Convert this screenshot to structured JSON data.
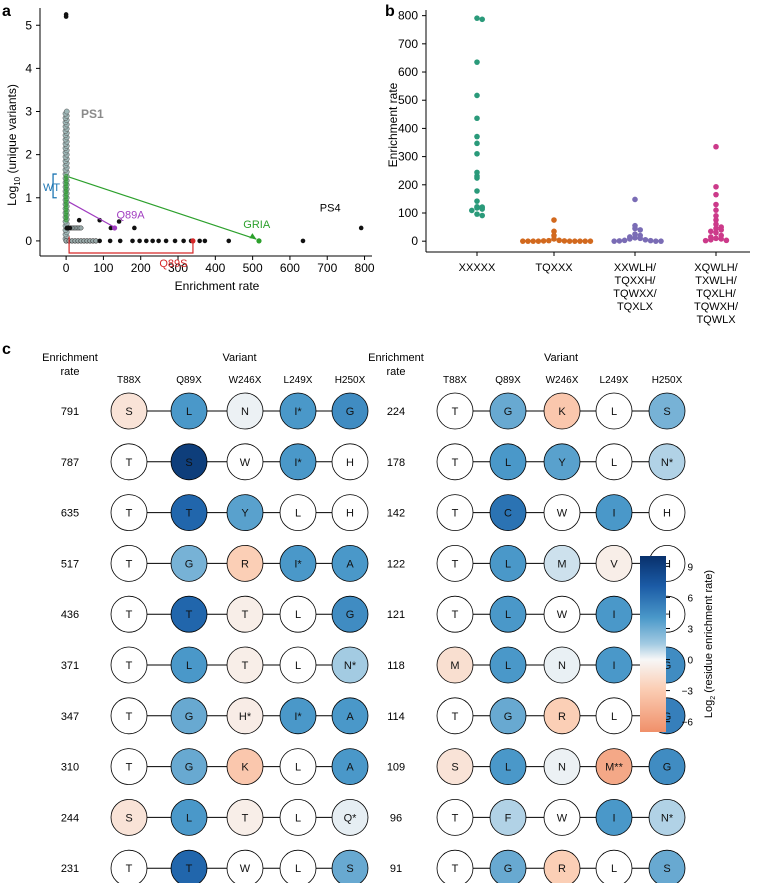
{
  "panels": {
    "a": {
      "letter": "a"
    },
    "b": {
      "letter": "b"
    },
    "c": {
      "letter": "c"
    }
  },
  "chart_data": [
    {
      "id": "panel-a",
      "type": "scatter",
      "xlabel": "Enrichment rate",
      "ylabel_main": "Log",
      "ylabel_sub": "10",
      "ylabel_rest": " (unique variants)",
      "xlim": [
        -70,
        820
      ],
      "ylim": [
        -0.35,
        5.4
      ],
      "xticks": [
        0,
        100,
        200,
        300,
        400,
        500,
        600,
        700,
        800
      ],
      "yticks": [
        0,
        1,
        2,
        3,
        4,
        5
      ],
      "black_points": [
        [
          0,
          5.25
        ],
        [
          0,
          5.2
        ],
        [
          35,
          0.48
        ],
        [
          90,
          0.48
        ],
        [
          120,
          0.3
        ],
        [
          142,
          0.45
        ],
        [
          183,
          0.3
        ],
        [
          10,
          0.3
        ],
        [
          2,
          0.3
        ],
        [
          5,
          0.3
        ],
        [
          90,
          0
        ],
        [
          118,
          0
        ],
        [
          145,
          0
        ],
        [
          178,
          0
        ],
        [
          197,
          0
        ],
        [
          215,
          0
        ],
        [
          232,
          0
        ],
        [
          248,
          0
        ],
        [
          268,
          0
        ],
        [
          292,
          0
        ],
        [
          315,
          0
        ],
        [
          335,
          0
        ],
        [
          358,
          0
        ],
        [
          372,
          0
        ],
        [
          436,
          0
        ],
        [
          517,
          0
        ],
        [
          635,
          0
        ],
        [
          791,
          0.3
        ]
      ],
      "low_black_x": [
        0,
        8,
        16,
        24,
        32,
        40,
        48,
        56,
        64,
        72,
        80
      ],
      "labels": {
        "ps1": "PS1",
        "ps4": "PS4",
        "wt": "WT",
        "gria": "GRIA",
        "q89a": "Q89A",
        "q89s": "Q89S"
      },
      "colors": {
        "green": "#2ca02c",
        "purple": "#a03cc0",
        "red": "#d62728",
        "blue": "#1f77b4",
        "grey": "#8a8a8a"
      }
    },
    {
      "id": "panel-b",
      "type": "scatter",
      "ylabel": "Enrichment rate",
      "ylim": [
        -10,
        820
      ],
      "yticks": [
        0,
        100,
        200,
        300,
        400,
        500,
        600,
        700,
        800
      ],
      "categories": [
        {
          "label": [
            "XXXXX"
          ],
          "color": "#2a9a7a",
          "values": [
            791,
            787,
            635,
            517,
            436,
            371,
            347,
            310,
            244,
            231,
            224,
            178,
            142,
            122,
            121,
            118,
            114,
            109,
            96,
            91
          ]
        },
        {
          "label": [
            "TQXXX"
          ],
          "color": "#d2691e",
          "values": [
            75,
            35,
            20,
            8,
            3,
            2,
            1,
            1,
            0,
            0,
            0,
            0,
            0,
            0,
            0,
            0,
            0
          ]
        },
        {
          "label": [
            "XXWLH/",
            "TQXXH/",
            "TQWXX/",
            "TQXLX"
          ],
          "color": "#7a6cb5",
          "values": [
            148,
            55,
            45,
            40,
            25,
            20,
            15,
            12,
            10,
            8,
            5,
            3,
            2,
            1,
            0,
            0,
            0
          ]
        },
        {
          "label": [
            "XQWLH/",
            "TXWLH/",
            "TQXLH/",
            "TQWXH/",
            "TQWLX"
          ],
          "color": "#cc3a8a",
          "values": [
            335,
            193,
            165,
            130,
            110,
            90,
            75,
            60,
            50,
            45,
            40,
            35,
            30,
            20,
            15,
            10,
            8,
            5,
            3,
            2
          ]
        }
      ]
    }
  ],
  "table": {
    "header_rate": [
      "Enrichment",
      "rate"
    ],
    "header_variant": "Variant",
    "columns": [
      "T88X",
      "Q89X",
      "W246X",
      "L249X",
      "H250X"
    ],
    "left": [
      {
        "rate": "791",
        "cells": [
          [
            "S",
            -1.5
          ],
          [
            "L",
            6
          ],
          [
            "N",
            0.4
          ],
          [
            "I*",
            6
          ],
          [
            "G",
            6.5
          ]
        ]
      },
      {
        "rate": "787",
        "cells": [
          [
            "T",
            null
          ],
          [
            "S",
            9.5
          ],
          [
            "W",
            null
          ],
          [
            "I*",
            6
          ],
          [
            "H",
            null
          ]
        ]
      },
      {
        "rate": "635",
        "cells": [
          [
            "T",
            null
          ],
          [
            "T",
            8
          ],
          [
            "Y",
            5.5
          ],
          [
            "L",
            null
          ],
          [
            "H",
            null
          ]
        ]
      },
      {
        "rate": "517",
        "cells": [
          [
            "T",
            null
          ],
          [
            "G",
            4.5
          ],
          [
            "R",
            -3
          ],
          [
            "I*",
            6
          ],
          [
            "A",
            6
          ]
        ]
      },
      {
        "rate": "436",
        "cells": [
          [
            "T",
            null
          ],
          [
            "T",
            8
          ],
          [
            "T",
            -0.7
          ],
          [
            "L",
            null
          ],
          [
            "G",
            6.5
          ]
        ]
      },
      {
        "rate": "371",
        "cells": [
          [
            "T",
            null
          ],
          [
            "L",
            6
          ],
          [
            "T",
            -0.7
          ],
          [
            "L",
            null
          ],
          [
            "N*",
            3
          ]
        ]
      },
      {
        "rate": "347",
        "cells": [
          [
            "T",
            null
          ],
          [
            "G",
            5
          ],
          [
            "H*",
            -0.8
          ],
          [
            "I*",
            6
          ],
          [
            "A",
            6
          ]
        ]
      },
      {
        "rate": "310",
        "cells": [
          [
            "T",
            null
          ],
          [
            "G",
            5
          ],
          [
            "K",
            -3.5
          ],
          [
            "L",
            null
          ],
          [
            "A",
            6
          ]
        ]
      },
      {
        "rate": "244",
        "cells": [
          [
            "S",
            -1.5
          ],
          [
            "L",
            6
          ],
          [
            "T",
            -0.7
          ],
          [
            "L",
            null
          ],
          [
            "Q*",
            0.6
          ]
        ]
      },
      {
        "rate": "231",
        "cells": [
          [
            "T",
            null
          ],
          [
            "T",
            8
          ],
          [
            "W",
            null
          ],
          [
            "L",
            null
          ],
          [
            "S",
            5
          ]
        ]
      }
    ],
    "right": [
      {
        "rate": "224",
        "cells": [
          [
            "T",
            null
          ],
          [
            "G",
            5
          ],
          [
            "K",
            -3.5
          ],
          [
            "L",
            null
          ],
          [
            "S",
            4.5
          ]
        ]
      },
      {
        "rate": "178",
        "cells": [
          [
            "T",
            null
          ],
          [
            "L",
            6
          ],
          [
            "Y",
            5.5
          ],
          [
            "L",
            null
          ],
          [
            "N*",
            2.5
          ]
        ]
      },
      {
        "rate": "142",
        "cells": [
          [
            "T",
            null
          ],
          [
            "C",
            7.5
          ],
          [
            "W",
            null
          ],
          [
            "I",
            6
          ],
          [
            "H",
            null
          ]
        ]
      },
      {
        "rate": "122",
        "cells": [
          [
            "T",
            null
          ],
          [
            "L",
            6
          ],
          [
            "M",
            1.5
          ],
          [
            "V",
            -0.7
          ],
          [
            "H",
            null
          ]
        ]
      },
      {
        "rate": "121",
        "cells": [
          [
            "T",
            null
          ],
          [
            "L",
            6
          ],
          [
            "W",
            null
          ],
          [
            "I",
            6
          ],
          [
            "H",
            null
          ]
        ]
      },
      {
        "rate": "118",
        "cells": [
          [
            "M",
            -1.8
          ],
          [
            "L",
            6
          ],
          [
            "N",
            0.5
          ],
          [
            "I",
            6
          ],
          [
            "G",
            6.5
          ]
        ]
      },
      {
        "rate": "114",
        "cells": [
          [
            "T",
            null
          ],
          [
            "G",
            5
          ],
          [
            "R",
            -3
          ],
          [
            "L",
            null
          ],
          [
            "G",
            7
          ]
        ]
      },
      {
        "rate": "109",
        "cells": [
          [
            "S",
            -1.5
          ],
          [
            "L",
            6
          ],
          [
            "N",
            0.4
          ],
          [
            "M**",
            -5.5
          ],
          [
            "G",
            6.5
          ]
        ]
      },
      {
        "rate": "96",
        "cells": [
          [
            "T",
            null
          ],
          [
            "F",
            2.5
          ],
          [
            "W",
            null
          ],
          [
            "I",
            6
          ],
          [
            "N*",
            2.5
          ]
        ]
      },
      {
        "rate": "91",
        "cells": [
          [
            "T",
            null
          ],
          [
            "G",
            5
          ],
          [
            "R",
            -3
          ],
          [
            "L",
            null
          ],
          [
            "S",
            5
          ]
        ]
      }
    ]
  },
  "colorbar": {
    "label_main": "Log",
    "label_sub": "2",
    "label_rest": " (residue enrichment rate)",
    "range": [
      -7,
      10
    ],
    "ticks": [
      9,
      6,
      3,
      0,
      -3,
      -6
    ]
  }
}
